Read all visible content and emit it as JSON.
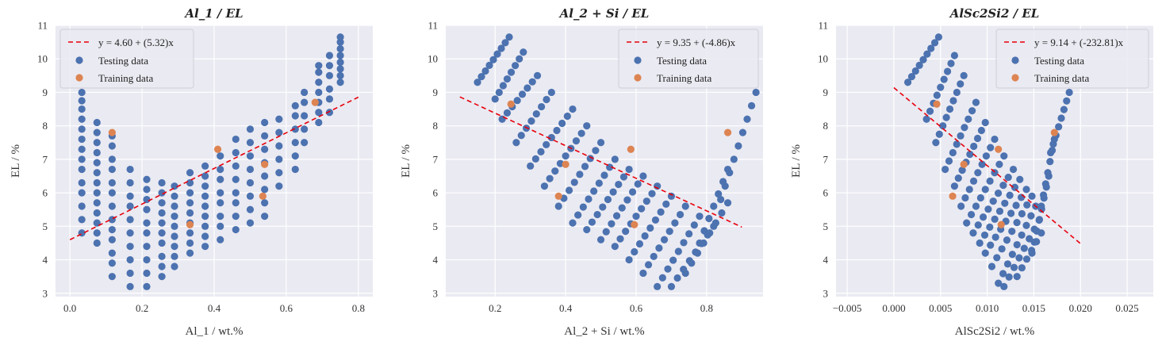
{
  "chart_data": [
    {
      "type": "scatter",
      "title": "Al_1 / EL",
      "xlabel": "Al_1 / wt.%",
      "ylabel": "EL / %",
      "xlim": [
        -0.04,
        0.84
      ],
      "ylim": [
        2.9,
        11.0
      ],
      "xticks": [
        "0.0",
        "0.2",
        "0.4",
        "0.6",
        "0.8"
      ],
      "xtick_values": [
        0.0,
        0.2,
        0.4,
        0.6,
        0.8
      ],
      "yticks": [
        "3",
        "4",
        "5",
        "6",
        "7",
        "8",
        "9",
        "10",
        "11"
      ],
      "ytick_values": [
        3,
        4,
        5,
        6,
        7,
        8,
        9,
        10,
        11
      ],
      "grid": true,
      "legend_position": "top-left",
      "fit": {
        "label": "y = 4.60 + (5.32)x",
        "intercept": 4.6,
        "slope": 5.32,
        "x_range": [
          0.0,
          0.8
        ]
      },
      "testing": {
        "label": "Testing data",
        "columns": [
          {
            "x": 0.033,
            "y": [
              4.8,
              5.2,
              5.6,
              6.0,
              6.3,
              6.7,
              7.0,
              7.3,
              7.6,
              7.9,
              8.2,
              8.5,
              8.75,
              9.0
            ]
          },
          {
            "x": 0.075,
            "y": [
              4.5,
              4.8,
              5.1,
              5.4,
              5.7,
              6.0,
              6.3,
              6.6,
              6.9,
              7.2,
              7.5,
              7.8,
              8.1
            ]
          },
          {
            "x": 0.117,
            "y": [
              3.5,
              3.9,
              4.2,
              4.6,
              4.9,
              5.2,
              5.6,
              6.0,
              6.3,
              6.7,
              7.0,
              7.4,
              7.7
            ]
          },
          {
            "x": 0.167,
            "y": [
              3.2,
              3.6,
              4.0,
              4.4,
              4.8,
              5.2,
              5.6,
              5.9,
              6.3,
              6.7
            ]
          },
          {
            "x": 0.213,
            "y": [
              3.2,
              3.6,
              4.0,
              4.4,
              4.8,
              5.1,
              5.5,
              5.8,
              6.1,
              6.4
            ]
          },
          {
            "x": 0.255,
            "y": [
              3.5,
              3.8,
              4.1,
              4.5,
              4.8,
              5.1,
              5.4,
              5.7,
              6.0,
              6.3
            ]
          },
          {
            "x": 0.29,
            "y": [
              3.8,
              4.1,
              4.4,
              4.7,
              5.0,
              5.3,
              5.6,
              5.9,
              6.2
            ]
          },
          {
            "x": 0.333,
            "y": [
              4.2,
              4.5,
              4.8,
              5.1,
              5.4,
              5.7,
              6.0,
              6.3,
              6.6
            ]
          },
          {
            "x": 0.375,
            "y": [
              4.4,
              4.7,
              5.0,
              5.3,
              5.6,
              5.9,
              6.2,
              6.5,
              6.8
            ]
          },
          {
            "x": 0.417,
            "y": [
              4.6,
              5.0,
              5.3,
              5.7,
              6.0,
              6.4,
              6.7,
              7.1
            ]
          },
          {
            "x": 0.46,
            "y": [
              4.9,
              5.3,
              5.7,
              6.0,
              6.4,
              6.8,
              7.2,
              7.6
            ]
          },
          {
            "x": 0.5,
            "y": [
              5.1,
              5.5,
              5.9,
              6.3,
              6.7,
              7.1,
              7.5,
              7.9
            ]
          },
          {
            "x": 0.54,
            "y": [
              5.3,
              5.7,
              6.1,
              6.5,
              6.9,
              7.3,
              7.7,
              8.1
            ]
          },
          {
            "x": 0.58,
            "y": [
              6.2,
              6.6,
              7.0,
              7.4,
              7.8,
              8.2
            ]
          },
          {
            "x": 0.625,
            "y": [
              6.7,
              7.1,
              7.5,
              7.9,
              8.3,
              8.6
            ]
          },
          {
            "x": 0.65,
            "y": [
              7.5,
              7.9,
              8.3,
              8.7,
              9.0
            ]
          },
          {
            "x": 0.69,
            "y": [
              8.1,
              8.4,
              8.7,
              9.0,
              9.3,
              9.6,
              9.8
            ]
          },
          {
            "x": 0.72,
            "y": [
              8.4,
              8.8,
              9.1,
              9.5,
              9.8,
              10.1
            ]
          },
          {
            "x": 0.75,
            "y": [
              9.3,
              9.5,
              9.7,
              9.9,
              10.1,
              10.3,
              10.5,
              10.65
            ]
          }
        ]
      },
      "training": {
        "label": "Training data",
        "points": [
          [
            0.117,
            7.8
          ],
          [
            0.333,
            5.05
          ],
          [
            0.41,
            7.3
          ],
          [
            0.54,
            6.85
          ],
          [
            0.535,
            5.9
          ],
          [
            0.68,
            8.7
          ]
        ]
      }
    },
    {
      "type": "scatter",
      "title": "Al_2 + Si / EL",
      "xlabel": "Al_2 + Si / wt.%",
      "ylabel": "EL / %",
      "xlim": [
        0.06,
        0.96
      ],
      "ylim": [
        2.9,
        11.0
      ],
      "xticks": [
        "0.2",
        "0.4",
        "0.6",
        "0.8"
      ],
      "xtick_values": [
        0.2,
        0.4,
        0.6,
        0.8
      ],
      "yticks": [
        "3",
        "4",
        "5",
        "6",
        "7",
        "8",
        "9",
        "10",
        "11"
      ],
      "ytick_values": [
        3,
        4,
        5,
        6,
        7,
        8,
        9,
        10,
        11
      ],
      "grid": true,
      "legend_position": "top-right",
      "fit": {
        "label": "y = 9.35 + (-4.86)x",
        "intercept": 9.35,
        "slope": -4.86,
        "x_range": [
          0.1,
          0.9
        ]
      },
      "testing": {
        "label": "Testing data",
        "lines": [
          {
            "x0": 0.15,
            "y0": 9.3,
            "x1": 0.24,
            "y1": 10.65,
            "n": 9
          },
          {
            "x0": 0.2,
            "y0": 8.8,
            "x1": 0.28,
            "y1": 10.2,
            "n": 8
          },
          {
            "x0": 0.22,
            "y0": 8.2,
            "x1": 0.32,
            "y1": 9.5,
            "n": 8
          },
          {
            "x0": 0.26,
            "y0": 7.5,
            "x1": 0.36,
            "y1": 9.0,
            "n": 8
          },
          {
            "x0": 0.3,
            "y0": 6.8,
            "x1": 0.42,
            "y1": 8.5,
            "n": 9
          },
          {
            "x0": 0.34,
            "y0": 6.2,
            "x1": 0.46,
            "y1": 8.0,
            "n": 9
          },
          {
            "x0": 0.38,
            "y0": 5.6,
            "x1": 0.5,
            "y1": 7.5,
            "n": 9
          },
          {
            "x0": 0.42,
            "y0": 5.1,
            "x1": 0.54,
            "y1": 7.0,
            "n": 9
          },
          {
            "x0": 0.46,
            "y0": 4.9,
            "x1": 0.58,
            "y1": 6.7,
            "n": 9
          },
          {
            "x0": 0.5,
            "y0": 4.6,
            "x1": 0.62,
            "y1": 6.5,
            "n": 9
          },
          {
            "x0": 0.54,
            "y0": 4.4,
            "x1": 0.66,
            "y1": 6.2,
            "n": 9
          },
          {
            "x0": 0.58,
            "y0": 4.0,
            "x1": 0.7,
            "y1": 5.9,
            "n": 9
          },
          {
            "x0": 0.62,
            "y0": 3.6,
            "x1": 0.74,
            "y1": 5.6,
            "n": 9
          },
          {
            "x0": 0.66,
            "y0": 3.2,
            "x1": 0.78,
            "y1": 5.3,
            "n": 9
          },
          {
            "x0": 0.7,
            "y0": 3.2,
            "x1": 0.82,
            "y1": 5.0,
            "n": 8
          },
          {
            "x0": 0.74,
            "y0": 3.6,
            "x1": 0.86,
            "y1": 5.7,
            "n": 8
          },
          {
            "x0": 0.78,
            "y0": 4.5,
            "x1": 0.86,
            "y1": 6.7,
            "n": 7
          },
          {
            "x0": 0.84,
            "y0": 5.8,
            "x1": 0.94,
            "y1": 9.0,
            "n": 9
          }
        ]
      },
      "training": {
        "label": "Training data",
        "points": [
          [
            0.245,
            8.65
          ],
          [
            0.38,
            5.9
          ],
          [
            0.4,
            6.85
          ],
          [
            0.585,
            7.3
          ],
          [
            0.595,
            5.05
          ],
          [
            0.86,
            7.8
          ]
        ]
      }
    },
    {
      "type": "scatter",
      "title": "AlSc2Si2 / EL",
      "xlabel": "AlSc2Si2 / wt.%",
      "ylabel": "EL / %",
      "xlim": [
        -0.0062,
        0.0278
      ],
      "ylim": [
        2.9,
        11.0
      ],
      "xticks": [
        "−0.005",
        "0.000",
        "0.005",
        "0.010",
        "0.015",
        "0.020",
        "0.025"
      ],
      "xtick_values": [
        -0.005,
        0.0,
        0.005,
        0.01,
        0.015,
        0.02,
        0.025
      ],
      "yticks": [
        "3",
        "4",
        "5",
        "6",
        "7",
        "8",
        "9",
        "10",
        "11"
      ],
      "ytick_values": [
        3,
        4,
        5,
        6,
        7,
        8,
        9,
        10,
        11
      ],
      "grid": true,
      "legend_position": "top-right",
      "fit": {
        "label": "y = 9.14 + (-232.81)x",
        "intercept": 9.14,
        "slope": -232.81,
        "x_range": [
          0.0,
          0.02
        ]
      },
      "testing": {
        "label": "Testing data",
        "lines": [
          {
            "x0": 0.0015,
            "y0": 9.3,
            "x1": 0.0048,
            "y1": 10.65,
            "n": 9
          },
          {
            "x0": 0.0035,
            "y0": 8.2,
            "x1": 0.0065,
            "y1": 10.1,
            "n": 9
          },
          {
            "x0": 0.0045,
            "y0": 7.5,
            "x1": 0.0075,
            "y1": 9.5,
            "n": 9
          },
          {
            "x0": 0.0055,
            "y0": 6.7,
            "x1": 0.0088,
            "y1": 8.7,
            "n": 9
          },
          {
            "x0": 0.0065,
            "y0": 6.2,
            "x1": 0.0098,
            "y1": 8.1,
            "n": 9
          },
          {
            "x0": 0.0072,
            "y0": 5.6,
            "x1": 0.0108,
            "y1": 7.6,
            "n": 9
          },
          {
            "x0": 0.0078,
            "y0": 5.1,
            "x1": 0.0118,
            "y1": 7.1,
            "n": 9
          },
          {
            "x0": 0.0085,
            "y0": 4.8,
            "x1": 0.0128,
            "y1": 6.7,
            "n": 9
          },
          {
            "x0": 0.0092,
            "y0": 4.5,
            "x1": 0.0135,
            "y1": 6.4,
            "n": 9
          },
          {
            "x0": 0.0098,
            "y0": 4.2,
            "x1": 0.0142,
            "y1": 6.1,
            "n": 9
          },
          {
            "x0": 0.0105,
            "y0": 3.8,
            "x1": 0.0148,
            "y1": 5.9,
            "n": 9
          },
          {
            "x0": 0.0112,
            "y0": 3.3,
            "x1": 0.0152,
            "y1": 5.6,
            "n": 9
          },
          {
            "x0": 0.0118,
            "y0": 3.2,
            "x1": 0.0156,
            "y1": 5.2,
            "n": 8
          },
          {
            "x0": 0.0132,
            "y0": 3.5,
            "x1": 0.0158,
            "y1": 4.8,
            "n": 6
          },
          {
            "x0": 0.0148,
            "y0": 4.2,
            "x1": 0.0166,
            "y1": 6.5,
            "n": 8
          },
          {
            "x0": 0.0158,
            "y0": 5.6,
            "x1": 0.0172,
            "y1": 7.6,
            "n": 7
          },
          {
            "x0": 0.0168,
            "y0": 7.2,
            "x1": 0.0188,
            "y1": 9.0,
            "n": 8
          }
        ]
      },
      "training": {
        "label": "Training data",
        "points": [
          [
            0.0046,
            8.65
          ],
          [
            0.0063,
            5.9
          ],
          [
            0.0075,
            6.85
          ],
          [
            0.0112,
            7.3
          ],
          [
            0.0115,
            5.05
          ],
          [
            0.0172,
            7.8
          ]
        ]
      }
    }
  ],
  "style": {
    "panel_background": "#eaeaf2",
    "grid_color": "#ffffff",
    "testing_color": "#4c72b0",
    "training_color": "#dd8452",
    "fit_color": "#e8000b"
  }
}
